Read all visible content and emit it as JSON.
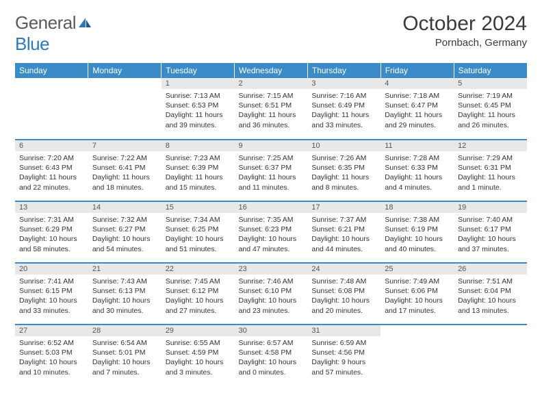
{
  "logo": {
    "text_gray": "General",
    "text_blue": "Blue"
  },
  "title": "October 2024",
  "location": "Pornbach, Germany",
  "colors": {
    "header_bg": "#3b8bc8",
    "header_text": "#ffffff",
    "daynum_bg": "#e8e8e8",
    "cell_border": "#3b8bc8",
    "body_text": "#333333",
    "logo_gray": "#5a5a5a",
    "logo_blue": "#2a7ab9"
  },
  "weekdays": [
    "Sunday",
    "Monday",
    "Tuesday",
    "Wednesday",
    "Thursday",
    "Friday",
    "Saturday"
  ],
  "weeks": [
    [
      null,
      null,
      {
        "n": "1",
        "sr": "Sunrise: 7:13 AM",
        "ss": "Sunset: 6:53 PM",
        "dl": "Daylight: 11 hours and 39 minutes."
      },
      {
        "n": "2",
        "sr": "Sunrise: 7:15 AM",
        "ss": "Sunset: 6:51 PM",
        "dl": "Daylight: 11 hours and 36 minutes."
      },
      {
        "n": "3",
        "sr": "Sunrise: 7:16 AM",
        "ss": "Sunset: 6:49 PM",
        "dl": "Daylight: 11 hours and 33 minutes."
      },
      {
        "n": "4",
        "sr": "Sunrise: 7:18 AM",
        "ss": "Sunset: 6:47 PM",
        "dl": "Daylight: 11 hours and 29 minutes."
      },
      {
        "n": "5",
        "sr": "Sunrise: 7:19 AM",
        "ss": "Sunset: 6:45 PM",
        "dl": "Daylight: 11 hours and 26 minutes."
      }
    ],
    [
      {
        "n": "6",
        "sr": "Sunrise: 7:20 AM",
        "ss": "Sunset: 6:43 PM",
        "dl": "Daylight: 11 hours and 22 minutes."
      },
      {
        "n": "7",
        "sr": "Sunrise: 7:22 AM",
        "ss": "Sunset: 6:41 PM",
        "dl": "Daylight: 11 hours and 18 minutes."
      },
      {
        "n": "8",
        "sr": "Sunrise: 7:23 AM",
        "ss": "Sunset: 6:39 PM",
        "dl": "Daylight: 11 hours and 15 minutes."
      },
      {
        "n": "9",
        "sr": "Sunrise: 7:25 AM",
        "ss": "Sunset: 6:37 PM",
        "dl": "Daylight: 11 hours and 11 minutes."
      },
      {
        "n": "10",
        "sr": "Sunrise: 7:26 AM",
        "ss": "Sunset: 6:35 PM",
        "dl": "Daylight: 11 hours and 8 minutes."
      },
      {
        "n": "11",
        "sr": "Sunrise: 7:28 AM",
        "ss": "Sunset: 6:33 PM",
        "dl": "Daylight: 11 hours and 4 minutes."
      },
      {
        "n": "12",
        "sr": "Sunrise: 7:29 AM",
        "ss": "Sunset: 6:31 PM",
        "dl": "Daylight: 11 hours and 1 minute."
      }
    ],
    [
      {
        "n": "13",
        "sr": "Sunrise: 7:31 AM",
        "ss": "Sunset: 6:29 PM",
        "dl": "Daylight: 10 hours and 58 minutes."
      },
      {
        "n": "14",
        "sr": "Sunrise: 7:32 AM",
        "ss": "Sunset: 6:27 PM",
        "dl": "Daylight: 10 hours and 54 minutes."
      },
      {
        "n": "15",
        "sr": "Sunrise: 7:34 AM",
        "ss": "Sunset: 6:25 PM",
        "dl": "Daylight: 10 hours and 51 minutes."
      },
      {
        "n": "16",
        "sr": "Sunrise: 7:35 AM",
        "ss": "Sunset: 6:23 PM",
        "dl": "Daylight: 10 hours and 47 minutes."
      },
      {
        "n": "17",
        "sr": "Sunrise: 7:37 AM",
        "ss": "Sunset: 6:21 PM",
        "dl": "Daylight: 10 hours and 44 minutes."
      },
      {
        "n": "18",
        "sr": "Sunrise: 7:38 AM",
        "ss": "Sunset: 6:19 PM",
        "dl": "Daylight: 10 hours and 40 minutes."
      },
      {
        "n": "19",
        "sr": "Sunrise: 7:40 AM",
        "ss": "Sunset: 6:17 PM",
        "dl": "Daylight: 10 hours and 37 minutes."
      }
    ],
    [
      {
        "n": "20",
        "sr": "Sunrise: 7:41 AM",
        "ss": "Sunset: 6:15 PM",
        "dl": "Daylight: 10 hours and 33 minutes."
      },
      {
        "n": "21",
        "sr": "Sunrise: 7:43 AM",
        "ss": "Sunset: 6:13 PM",
        "dl": "Daylight: 10 hours and 30 minutes."
      },
      {
        "n": "22",
        "sr": "Sunrise: 7:45 AM",
        "ss": "Sunset: 6:12 PM",
        "dl": "Daylight: 10 hours and 27 minutes."
      },
      {
        "n": "23",
        "sr": "Sunrise: 7:46 AM",
        "ss": "Sunset: 6:10 PM",
        "dl": "Daylight: 10 hours and 23 minutes."
      },
      {
        "n": "24",
        "sr": "Sunrise: 7:48 AM",
        "ss": "Sunset: 6:08 PM",
        "dl": "Daylight: 10 hours and 20 minutes."
      },
      {
        "n": "25",
        "sr": "Sunrise: 7:49 AM",
        "ss": "Sunset: 6:06 PM",
        "dl": "Daylight: 10 hours and 17 minutes."
      },
      {
        "n": "26",
        "sr": "Sunrise: 7:51 AM",
        "ss": "Sunset: 6:04 PM",
        "dl": "Daylight: 10 hours and 13 minutes."
      }
    ],
    [
      {
        "n": "27",
        "sr": "Sunrise: 6:52 AM",
        "ss": "Sunset: 5:03 PM",
        "dl": "Daylight: 10 hours and 10 minutes."
      },
      {
        "n": "28",
        "sr": "Sunrise: 6:54 AM",
        "ss": "Sunset: 5:01 PM",
        "dl": "Daylight: 10 hours and 7 minutes."
      },
      {
        "n": "29",
        "sr": "Sunrise: 6:55 AM",
        "ss": "Sunset: 4:59 PM",
        "dl": "Daylight: 10 hours and 3 minutes."
      },
      {
        "n": "30",
        "sr": "Sunrise: 6:57 AM",
        "ss": "Sunset: 4:58 PM",
        "dl": "Daylight: 10 hours and 0 minutes."
      },
      {
        "n": "31",
        "sr": "Sunrise: 6:59 AM",
        "ss": "Sunset: 4:56 PM",
        "dl": "Daylight: 9 hours and 57 minutes."
      },
      null,
      null
    ]
  ]
}
